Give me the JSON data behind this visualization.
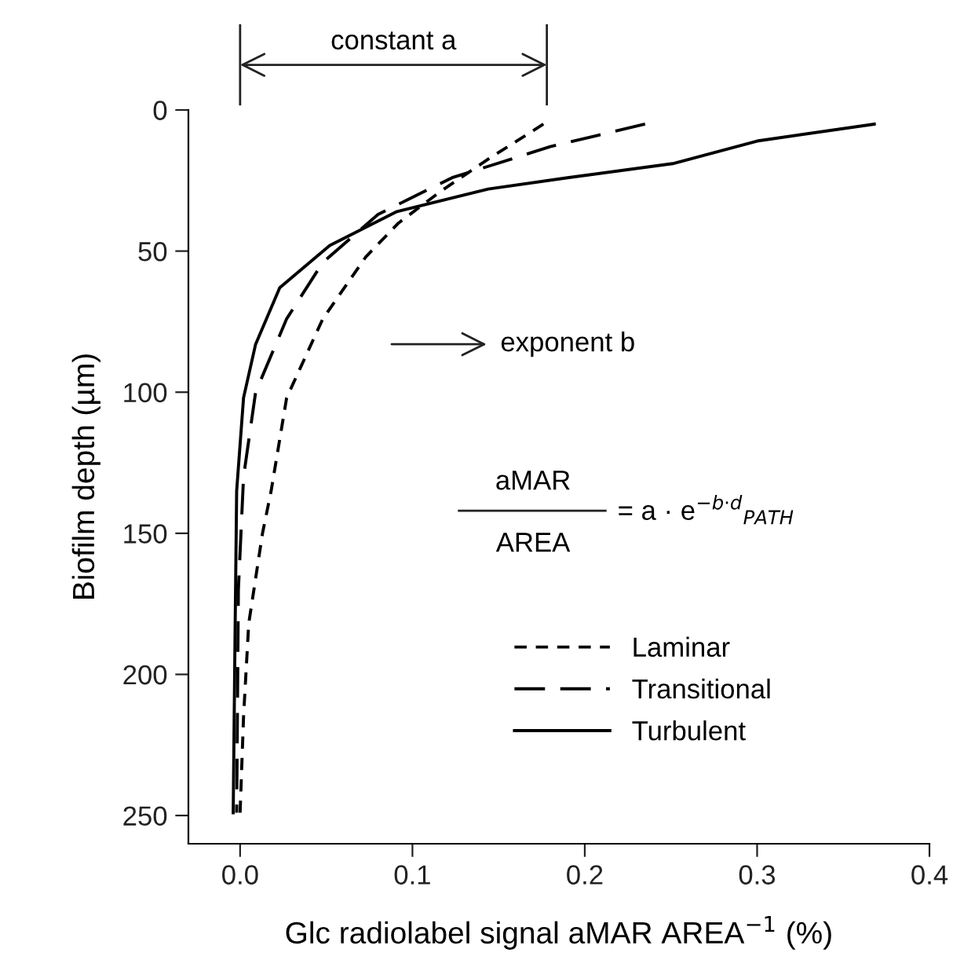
{
  "chart_data": {
    "type": "line",
    "xlabel": "Glc radiolabel signal aMAR AREA$^{−1}$ (%)",
    "ylabel": "Biofilm depth (µm)",
    "xlim": [
      -0.03,
      0.4
    ],
    "xticks": [
      {
        "value": 0,
        "label": "0.0"
      },
      0.1,
      0.2,
      0.3,
      0.4
    ],
    "ylim": [
      260,
      0
    ],
    "yticks": [
      0,
      50,
      100,
      150,
      200,
      250
    ],
    "grid": false,
    "legend": "bottom right",
    "marker": "none",
    "annotations": [
      "constant a",
      "exponent b",
      "aMAR",
      "AREA",
      "= a · e$^{−b·d}$$_{PATH}$"
    ],
    "series": [
      {
        "name": "Laminar",
        "color": "#000000",
        "line_style": "dashed",
        "x": [
          0.176,
          0.145,
          0.116,
          0.092,
          0.073,
          0.048,
          0.027,
          0.018,
          0.013,
          0.005,
          0.002,
          0.0
        ],
        "values": [
          5,
          17,
          29,
          40,
          52,
          74,
          102,
          135,
          150,
          182,
          215,
          249
        ]
      },
      {
        "name": "Transitional",
        "color": "#000000",
        "line_style": "dashed",
        "x": [
          0.235,
          0.18,
          0.123,
          0.08,
          0.048,
          0.027,
          0.009,
          0.002,
          -0.001,
          -0.002
        ],
        "values": [
          5,
          13,
          24,
          37,
          54,
          74,
          100,
          130,
          170,
          249
        ]
      },
      {
        "name": "Turbulent",
        "color": "#000000",
        "line_style": "solid",
        "x": [
          0.368,
          0.3,
          0.251,
          0.19,
          0.144,
          0.091,
          0.052,
          0.023,
          0.009,
          0.002,
          -0.002,
          -0.003,
          -0.004
        ],
        "values": [
          5,
          11,
          19,
          24,
          28,
          36,
          48,
          63,
          83,
          102,
          135,
          190,
          249
        ]
      }
    ]
  }
}
